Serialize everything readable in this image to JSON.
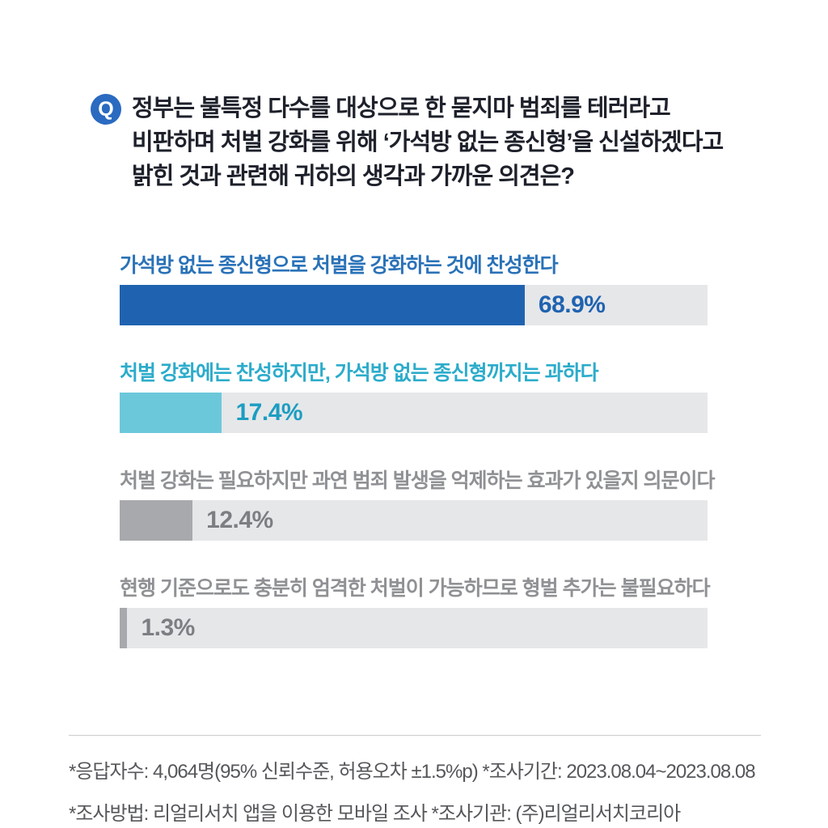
{
  "question": {
    "icon_letter": "Q",
    "lines": [
      "정부는 불특정 다수를 대상으로 한 묻지마 범죄를 테러라고",
      "비판하며 처벌 강화를 위해 ‘가석방 없는 종신형’을 신설하겠다고",
      "밝힌 것과 관련해 귀하의 생각과 가까운 의견은?"
    ]
  },
  "chart_data": {
    "type": "bar",
    "orientation": "horizontal",
    "categories": [
      "가석방 없는 종신형으로 처벌을 강화하는 것에 찬성한다",
      "처벌 강화에는 찬성하지만, 가석방 없는 종신형까지는 과하다",
      "처벌 강화는 필요하지만 과연 범죄 발생을 억제하는 효과가 있을지 의문이다",
      "현행 기준으로도 충분히 엄격한 처벌이 가능하므로 형벌 추가는 불필요하다"
    ],
    "values": [
      68.9,
      17.4,
      12.4,
      1.3
    ],
    "value_labels": [
      "68.9%",
      "17.4%",
      "12.4%",
      "1.3%"
    ],
    "xlim": [
      0,
      100
    ],
    "grid": false,
    "legend": false,
    "bar_colors": [
      "#1f63b0",
      "#6bc8da",
      "#a7a9ac",
      "#a7a9ac"
    ],
    "label_colors": [
      "#2a72b8",
      "#2caccb",
      "#8f9194",
      "#8f9194"
    ],
    "value_colors": [
      "#1f63b0",
      "#1d9dc2",
      "#7c7e82",
      "#7c7e82"
    ],
    "track_color": "#e6e7e9"
  },
  "footer": {
    "line1": "*응답자수: 4,064명(95% 신뢰수준, 허용오차  ±1.5%p)  *조사기간: 2023.08.04~2023.08.08",
    "line2": "*조사방법: 리얼리서치 앱을 이용한 모바일 조사  *조사기관: (주)리얼리서치코리아"
  },
  "colors": {
    "question_icon_bg": "#2a6ac0",
    "question_text": "#1e212b",
    "footer_text": "#55575b",
    "divider": "#cbcccd",
    "background": "#ffffff"
  }
}
